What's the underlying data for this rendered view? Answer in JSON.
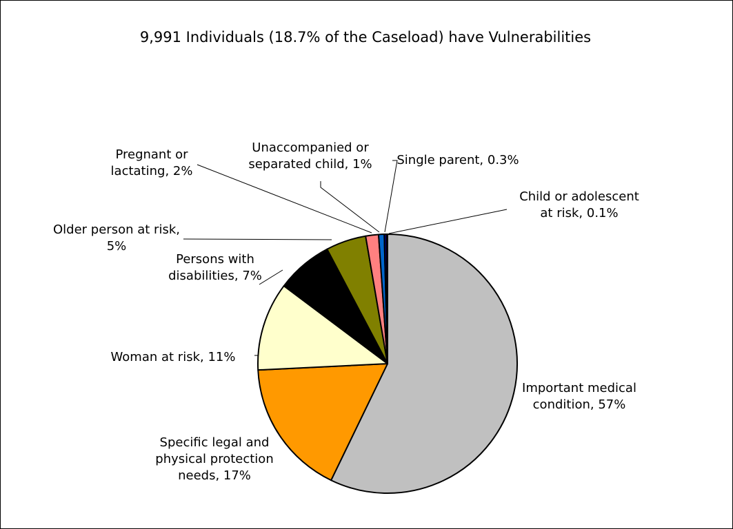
{
  "chart_data": {
    "type": "pie",
    "title": "9,991 Individuals (18.7% of the Caseload) have Vulnerabilities",
    "slices": [
      {
        "name": "Important medical condition",
        "value": 57,
        "value_label": "57%",
        "color": "#C0C0C0",
        "label_lines": [
          "Important medical",
          "condition, 57%"
        ]
      },
      {
        "name": "Specific legal and physical protection needs",
        "value": 17,
        "value_label": "17%",
        "color": "#FF9900",
        "label_lines": [
          "Specific legal and",
          "physical protection",
          "needs, 17%"
        ]
      },
      {
        "name": "Woman at risk",
        "value": 11,
        "value_label": "11%",
        "color": "#FFFFCC",
        "label_lines": [
          "Woman at risk, 11%"
        ]
      },
      {
        "name": "Persons with disabilities",
        "value": 7,
        "value_label": "7%",
        "color": "#000000",
        "label_lines": [
          "Persons with",
          "disabilities, 7%"
        ]
      },
      {
        "name": "Older person at risk",
        "value": 5,
        "value_label": "5%",
        "color": "#808000",
        "label_lines": [
          "Older person at risk,",
          "5%"
        ]
      },
      {
        "name": "Pregnant or lactating",
        "value": 1.6,
        "value_label": "2%",
        "color": "#FF8080",
        "label_lines": [
          "Pregnant or",
          "lactating, 2%"
        ]
      },
      {
        "name": "Unaccompanied or separated child",
        "value": 0.7,
        "value_label": "1%",
        "color": "#0066CC",
        "label_lines": [
          "Unaccompanied or",
          "separated child, 1%"
        ]
      },
      {
        "name": "Single parent",
        "value": 0.3,
        "value_label": "0.3%",
        "color": "#000080",
        "label_lines": [
          "Single parent, 0.3%"
        ]
      },
      {
        "name": "Child or adolescent at risk",
        "value": 0.1,
        "value_label": "0.1%",
        "color": "#333399",
        "label_lines": [
          "Child or adolescent",
          "at risk, 0.1%"
        ]
      }
    ]
  }
}
